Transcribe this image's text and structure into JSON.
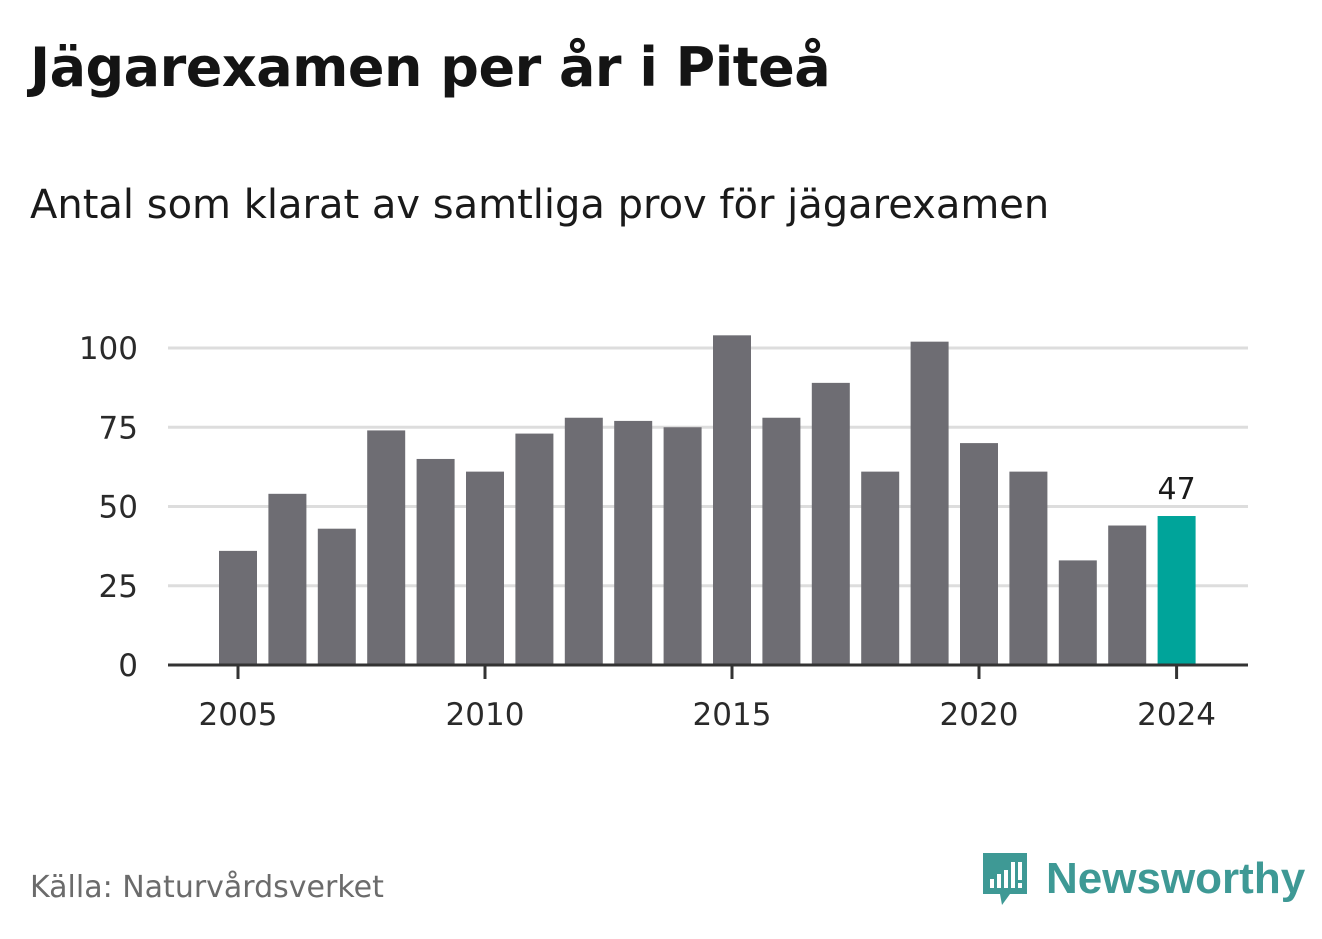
{
  "title": "Jägarexamen per år i Piteå",
  "subtitle": "Antal som klarat av samtliga prov för jägarexamen",
  "source": "Källa: Naturvårdsverket",
  "brand": {
    "name": "Newsworthy",
    "icon": "newsworthy-logo-icon",
    "color": "#3e9995"
  },
  "colors": {
    "bar": "#6e6d73",
    "highlight": "#00a49a",
    "grid": "#dddddd",
    "axis": "#333333"
  },
  "chart_data": {
    "type": "bar",
    "title": "Jägarexamen per år i Piteå",
    "subtitle": "Antal som klarat av samtliga prov för jägarexamen",
    "xlabel": "",
    "ylabel": "",
    "categories": [
      2005,
      2006,
      2007,
      2008,
      2009,
      2010,
      2011,
      2012,
      2013,
      2014,
      2015,
      2016,
      2017,
      2018,
      2019,
      2020,
      2021,
      2022,
      2023,
      2024
    ],
    "values": [
      36,
      54,
      43,
      74,
      65,
      61,
      73,
      78,
      77,
      75,
      104,
      78,
      89,
      61,
      102,
      70,
      61,
      33,
      44,
      47
    ],
    "ylim": [
      0,
      110
    ],
    "yticks": [
      0,
      25,
      50,
      75,
      100
    ],
    "xticks": [
      2005,
      2010,
      2015,
      2020,
      2024
    ],
    "highlight": {
      "category": 2024,
      "label": "47"
    },
    "grid": true,
    "legend": "none"
  }
}
